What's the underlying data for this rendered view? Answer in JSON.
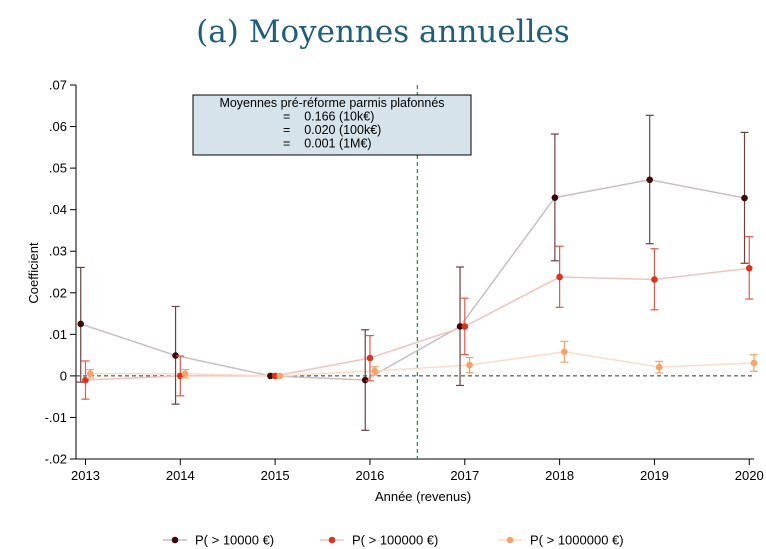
{
  "chart_data": {
    "type": "line",
    "title": "(a) Moyennes annuelles",
    "xlabel": "Année (revenus)",
    "ylabel": "Coefficient",
    "x": [
      2013,
      2014,
      2015,
      2016,
      2017,
      2018,
      2019,
      2020
    ],
    "x_tick_labels": [
      "2013",
      "2014",
      "2015",
      "2016",
      "2017",
      "2018",
      "2019",
      "2020"
    ],
    "xlim": [
      2012.9,
      2020.05
    ],
    "ylim": [
      -0.02,
      0.07
    ],
    "y_ticks": [
      -0.02,
      -0.01,
      0,
      0.01,
      0.02,
      0.03,
      0.04,
      0.05,
      0.06,
      0.07
    ],
    "y_tick_labels": [
      "-.02",
      "-.01",
      "0",
      ".01",
      ".02",
      ".03",
      ".04",
      ".05",
      ".06",
      ".07"
    ],
    "reference_vline": 2016.5,
    "reference_hline": 0,
    "grid": false,
    "legend_position": "bottom",
    "series": [
      {
        "name": "P( > 10000 €)",
        "color": "#3b0a0a",
        "line_color": "#c9bfc4",
        "ci_color": "#6e4040",
        "offset": -0.05,
        "values": [
          0.0125,
          0.0049,
          0.0,
          -0.001,
          0.0119,
          0.0429,
          0.0472,
          0.0428
        ],
        "ci_low": [
          -0.0015,
          -0.0068,
          0.0,
          -0.0131,
          -0.0023,
          0.0277,
          0.0318,
          0.0271
        ],
        "ci_high": [
          0.0261,
          0.0167,
          0.0,
          0.0111,
          0.0262,
          0.0582,
          0.0627,
          0.0586
        ]
      },
      {
        "name": "P( > 100000 €)",
        "color": "#d9341f",
        "line_color": "#f4c3bd",
        "ci_color": "#e25a48",
        "offset": 0.0,
        "values": [
          -0.001,
          0.0,
          0.0,
          0.0043,
          0.0119,
          0.0238,
          0.0232,
          0.0259
        ],
        "ci_low": [
          -0.0056,
          -0.0048,
          0.0,
          -0.0012,
          0.0051,
          0.0165,
          0.0159,
          0.0185
        ],
        "ci_high": [
          0.0036,
          0.0048,
          0.0,
          0.0097,
          0.0187,
          0.0312,
          0.0306,
          0.0335
        ]
      },
      {
        "name": "P( > 1000000 €)",
        "color": "#f5a36a",
        "line_color": "#fbdcc8",
        "ci_color": "#f5a36a",
        "offset": 0.05,
        "values": [
          0.0005,
          0.0005,
          0.0,
          0.0012,
          0.0026,
          0.0058,
          0.0021,
          0.0031
        ],
        "ci_low": [
          -0.0005,
          -0.0005,
          0.0,
          0.0002,
          0.0008,
          0.0033,
          0.0007,
          0.0011
        ],
        "ci_high": [
          0.0015,
          0.0015,
          0.0,
          0.0022,
          0.0044,
          0.0083,
          0.0035,
          0.0051
        ]
      }
    ],
    "annotation": {
      "lines": [
        "Moyennes pré-réforme parmis plafonnés",
        "=    0.166 (10k€)",
        "=    0.020 (100k€)",
        "=    0.001 (1M€)"
      ],
      "background": "#d7e3ea"
    }
  },
  "colors": {
    "title": "#1f5f7a",
    "vline": "#2a9a3a",
    "hline": "#333333"
  }
}
